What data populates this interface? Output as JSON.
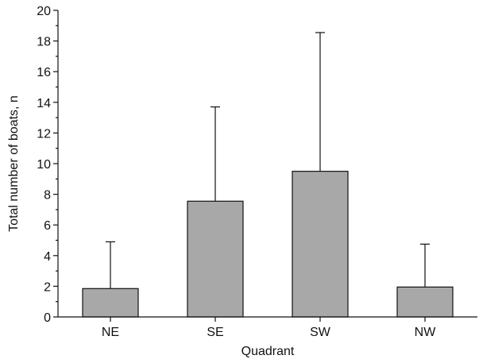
{
  "chart_data": {
    "type": "bar",
    "title": "",
    "xlabel": "Quadrant",
    "ylabel": "Total number of boats, n",
    "categories": [
      "NE",
      "SE",
      "SW",
      "NW"
    ],
    "values": [
      1.85,
      7.55,
      9.5,
      1.95
    ],
    "error_upper": [
      4.9,
      13.7,
      18.55,
      4.75
    ],
    "ylim": [
      0,
      20
    ],
    "yticks": [
      0,
      2,
      4,
      6,
      8,
      10,
      12,
      14,
      16,
      18,
      20
    ],
    "bar_color": "#a8a8a8",
    "grid": false,
    "legend": "none"
  }
}
